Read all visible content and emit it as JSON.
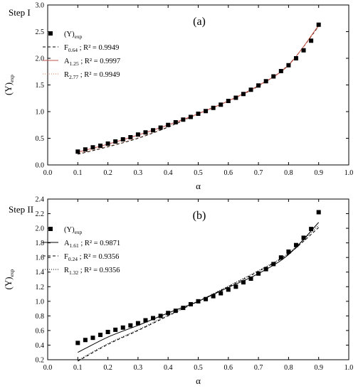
{
  "chart_data": [
    {
      "type": "scatter",
      "panel_label": "(a)",
      "step_label": "Step I",
      "xlabel": "α",
      "ylabel": {
        "base": "(Y)",
        "sub": "exp"
      },
      "xlim": [
        0.0,
        1.0
      ],
      "ylim": [
        0.0,
        3.0
      ],
      "xticks": [
        "0.0",
        "0.1",
        "0.2",
        "0.3",
        "0.4",
        "0.5",
        "0.6",
        "0.7",
        "0.8",
        "0.9",
        "1.0"
      ],
      "yticks": [
        "0.0",
        "0.5",
        "1.0",
        "1.5",
        "2.0",
        "2.5",
        "3.0"
      ],
      "legend_position": "top-left",
      "legend": [
        {
          "base": "(Y)",
          "sub": "exp",
          "tail": "",
          "style": "marker",
          "color": "#000000"
        },
        {
          "base": "F",
          "sub": "0.64",
          "tail": " ; R² = 0.9949",
          "style": "dash",
          "color": "#000000"
        },
        {
          "base": "A",
          "sub": "1.25",
          "tail": " ; R² = 0.9997",
          "style": "solid",
          "color": "#c0504d"
        },
        {
          "base": "R",
          "sub": "2.77",
          "tail": " ; R² = 0.9949",
          "style": "dot",
          "color": "#e07b53"
        }
      ],
      "series": [
        {
          "name": "(Y)exp",
          "x": [
            0.1,
            0.125,
            0.15,
            0.175,
            0.2,
            0.225,
            0.25,
            0.275,
            0.3,
            0.325,
            0.35,
            0.375,
            0.4,
            0.425,
            0.45,
            0.475,
            0.5,
            0.525,
            0.55,
            0.575,
            0.6,
            0.625,
            0.65,
            0.675,
            0.7,
            0.725,
            0.75,
            0.775,
            0.8,
            0.825,
            0.85,
            0.875,
            0.9
          ],
          "y": [
            0.25,
            0.29,
            0.33,
            0.36,
            0.4,
            0.44,
            0.48,
            0.52,
            0.57,
            0.61,
            0.65,
            0.7,
            0.75,
            0.8,
            0.85,
            0.9,
            0.96,
            1.01,
            1.07,
            1.13,
            1.2,
            1.26,
            1.33,
            1.41,
            1.49,
            1.57,
            1.66,
            1.76,
            1.87,
            2.0,
            2.15,
            2.33,
            2.63
          ]
        }
      ],
      "fits": [
        {
          "name": "F0.64",
          "x": [
            0.1,
            0.2,
            0.3,
            0.4,
            0.5,
            0.6,
            0.7,
            0.8,
            0.9
          ],
          "y": [
            0.2,
            0.34,
            0.5,
            0.71,
            0.96,
            1.2,
            1.48,
            1.88,
            2.6
          ]
        },
        {
          "name": "A1.25",
          "x": [
            0.1,
            0.2,
            0.3,
            0.4,
            0.5,
            0.6,
            0.7,
            0.8,
            0.9
          ],
          "y": [
            0.24,
            0.39,
            0.56,
            0.75,
            0.96,
            1.2,
            1.49,
            1.87,
            2.62
          ]
        },
        {
          "name": "R2.77",
          "x": [
            0.1,
            0.2,
            0.3,
            0.4,
            0.5,
            0.6,
            0.7,
            0.8,
            0.9
          ],
          "y": [
            0.21,
            0.35,
            0.51,
            0.72,
            0.96,
            1.2,
            1.48,
            1.88,
            2.6
          ]
        }
      ]
    },
    {
      "type": "scatter",
      "panel_label": "(b)",
      "step_label": "Step II",
      "xlabel": "α",
      "ylabel": {
        "base": "(Y)",
        "sub": "exp"
      },
      "xlim": [
        0.0,
        1.0
      ],
      "ylim": [
        0.2,
        2.4
      ],
      "xticks": [
        "0.0",
        "0.1",
        "0.2",
        "0.3",
        "0.4",
        "0.5",
        "0.6",
        "0.7",
        "0.8",
        "0.9",
        "1.0"
      ],
      "yticks": [
        "0.2",
        "0.4",
        "0.6",
        "0.8",
        "1.0",
        "1.2",
        "1.4",
        "1.6",
        "1.8",
        "2.0",
        "2.2",
        "2.4"
      ],
      "legend_position": "top-left",
      "legend": [
        {
          "base": "(Y)",
          "sub": "exp",
          "tail": "",
          "style": "marker",
          "color": "#000000"
        },
        {
          "base": "A",
          "sub": "1.61",
          "tail": " ; R² = 0.9871",
          "style": "solid",
          "color": "#000000"
        },
        {
          "base": "F",
          "sub": "0.24",
          "tail": " ; R² = 0.9356",
          "style": "dash",
          "color": "#000000"
        },
        {
          "base": "R",
          "sub": "1.32",
          "tail": " ; R² = 0.9356",
          "style": "dot",
          "color": "#000000"
        }
      ],
      "series": [
        {
          "name": "(Y)exp",
          "x": [
            0.1,
            0.125,
            0.15,
            0.175,
            0.2,
            0.225,
            0.25,
            0.275,
            0.3,
            0.325,
            0.35,
            0.375,
            0.4,
            0.425,
            0.45,
            0.475,
            0.5,
            0.525,
            0.55,
            0.575,
            0.6,
            0.625,
            0.65,
            0.675,
            0.7,
            0.725,
            0.75,
            0.775,
            0.8,
            0.825,
            0.85,
            0.875,
            0.9
          ],
          "y": [
            0.43,
            0.47,
            0.5,
            0.54,
            0.58,
            0.61,
            0.64,
            0.67,
            0.7,
            0.74,
            0.77,
            0.8,
            0.84,
            0.87,
            0.91,
            0.96,
            1.0,
            1.03,
            1.07,
            1.11,
            1.16,
            1.2,
            1.26,
            1.31,
            1.38,
            1.44,
            1.51,
            1.6,
            1.68,
            1.77,
            1.87,
            1.99,
            2.22
          ]
        }
      ],
      "fits": [
        {
          "name": "A1.61",
          "x": [
            0.1,
            0.2,
            0.3,
            0.4,
            0.5,
            0.6,
            0.7,
            0.8,
            0.9
          ],
          "y": [
            0.3,
            0.51,
            0.67,
            0.84,
            1.0,
            1.19,
            1.38,
            1.64,
            2.08
          ]
        },
        {
          "name": "F0.24",
          "x": [
            0.1,
            0.2,
            0.3,
            0.4,
            0.5,
            0.6,
            0.7,
            0.8,
            0.9
          ],
          "y": [
            0.18,
            0.41,
            0.6,
            0.8,
            1.0,
            1.2,
            1.41,
            1.65,
            2.01
          ]
        },
        {
          "name": "R1.32",
          "x": [
            0.1,
            0.2,
            0.3,
            0.4,
            0.5,
            0.6,
            0.7,
            0.8,
            0.9
          ],
          "y": [
            0.19,
            0.42,
            0.61,
            0.81,
            1.0,
            1.21,
            1.42,
            1.66,
            2.04
          ]
        }
      ]
    }
  ]
}
